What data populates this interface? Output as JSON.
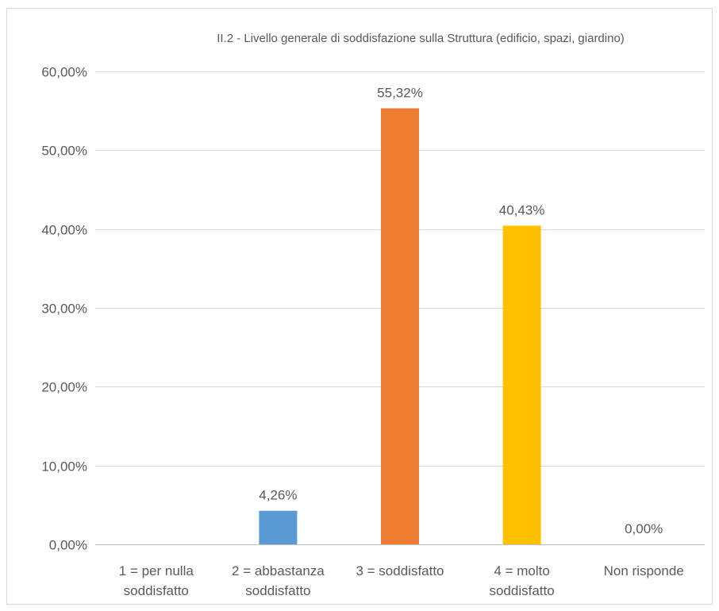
{
  "chart_data": {
    "type": "bar",
    "title": "II.2 - Livello generale di soddisfazione sulla Struttura (edificio, spazi, giardino)",
    "categories": [
      [
        "1 = per nulla",
        "soddisfatto"
      ],
      [
        "2 = abbastanza",
        "soddisfatto"
      ],
      [
        "3 = soddisfatto"
      ],
      [
        "4 = molto",
        "soddisfatto"
      ],
      [
        "Non risponde"
      ]
    ],
    "values": [
      null,
      4.26,
      55.32,
      40.43,
      0.0
    ],
    "data_labels": [
      "",
      "4,26%",
      "55,32%",
      "40,43%",
      "0,00%"
    ],
    "colors": [
      "#5b9bd5",
      "#5b9bd5",
      "#ed7d31",
      "#ffc000",
      "#a5a5a5"
    ],
    "ylim": [
      0,
      60
    ],
    "yticks": [
      0,
      10,
      20,
      30,
      40,
      50,
      60
    ],
    "ytick_labels": [
      "0,00%",
      "10,00%",
      "20,00%",
      "30,00%",
      "40,00%",
      "50,00%",
      "60,00%"
    ],
    "grid": true,
    "legend": "none"
  }
}
